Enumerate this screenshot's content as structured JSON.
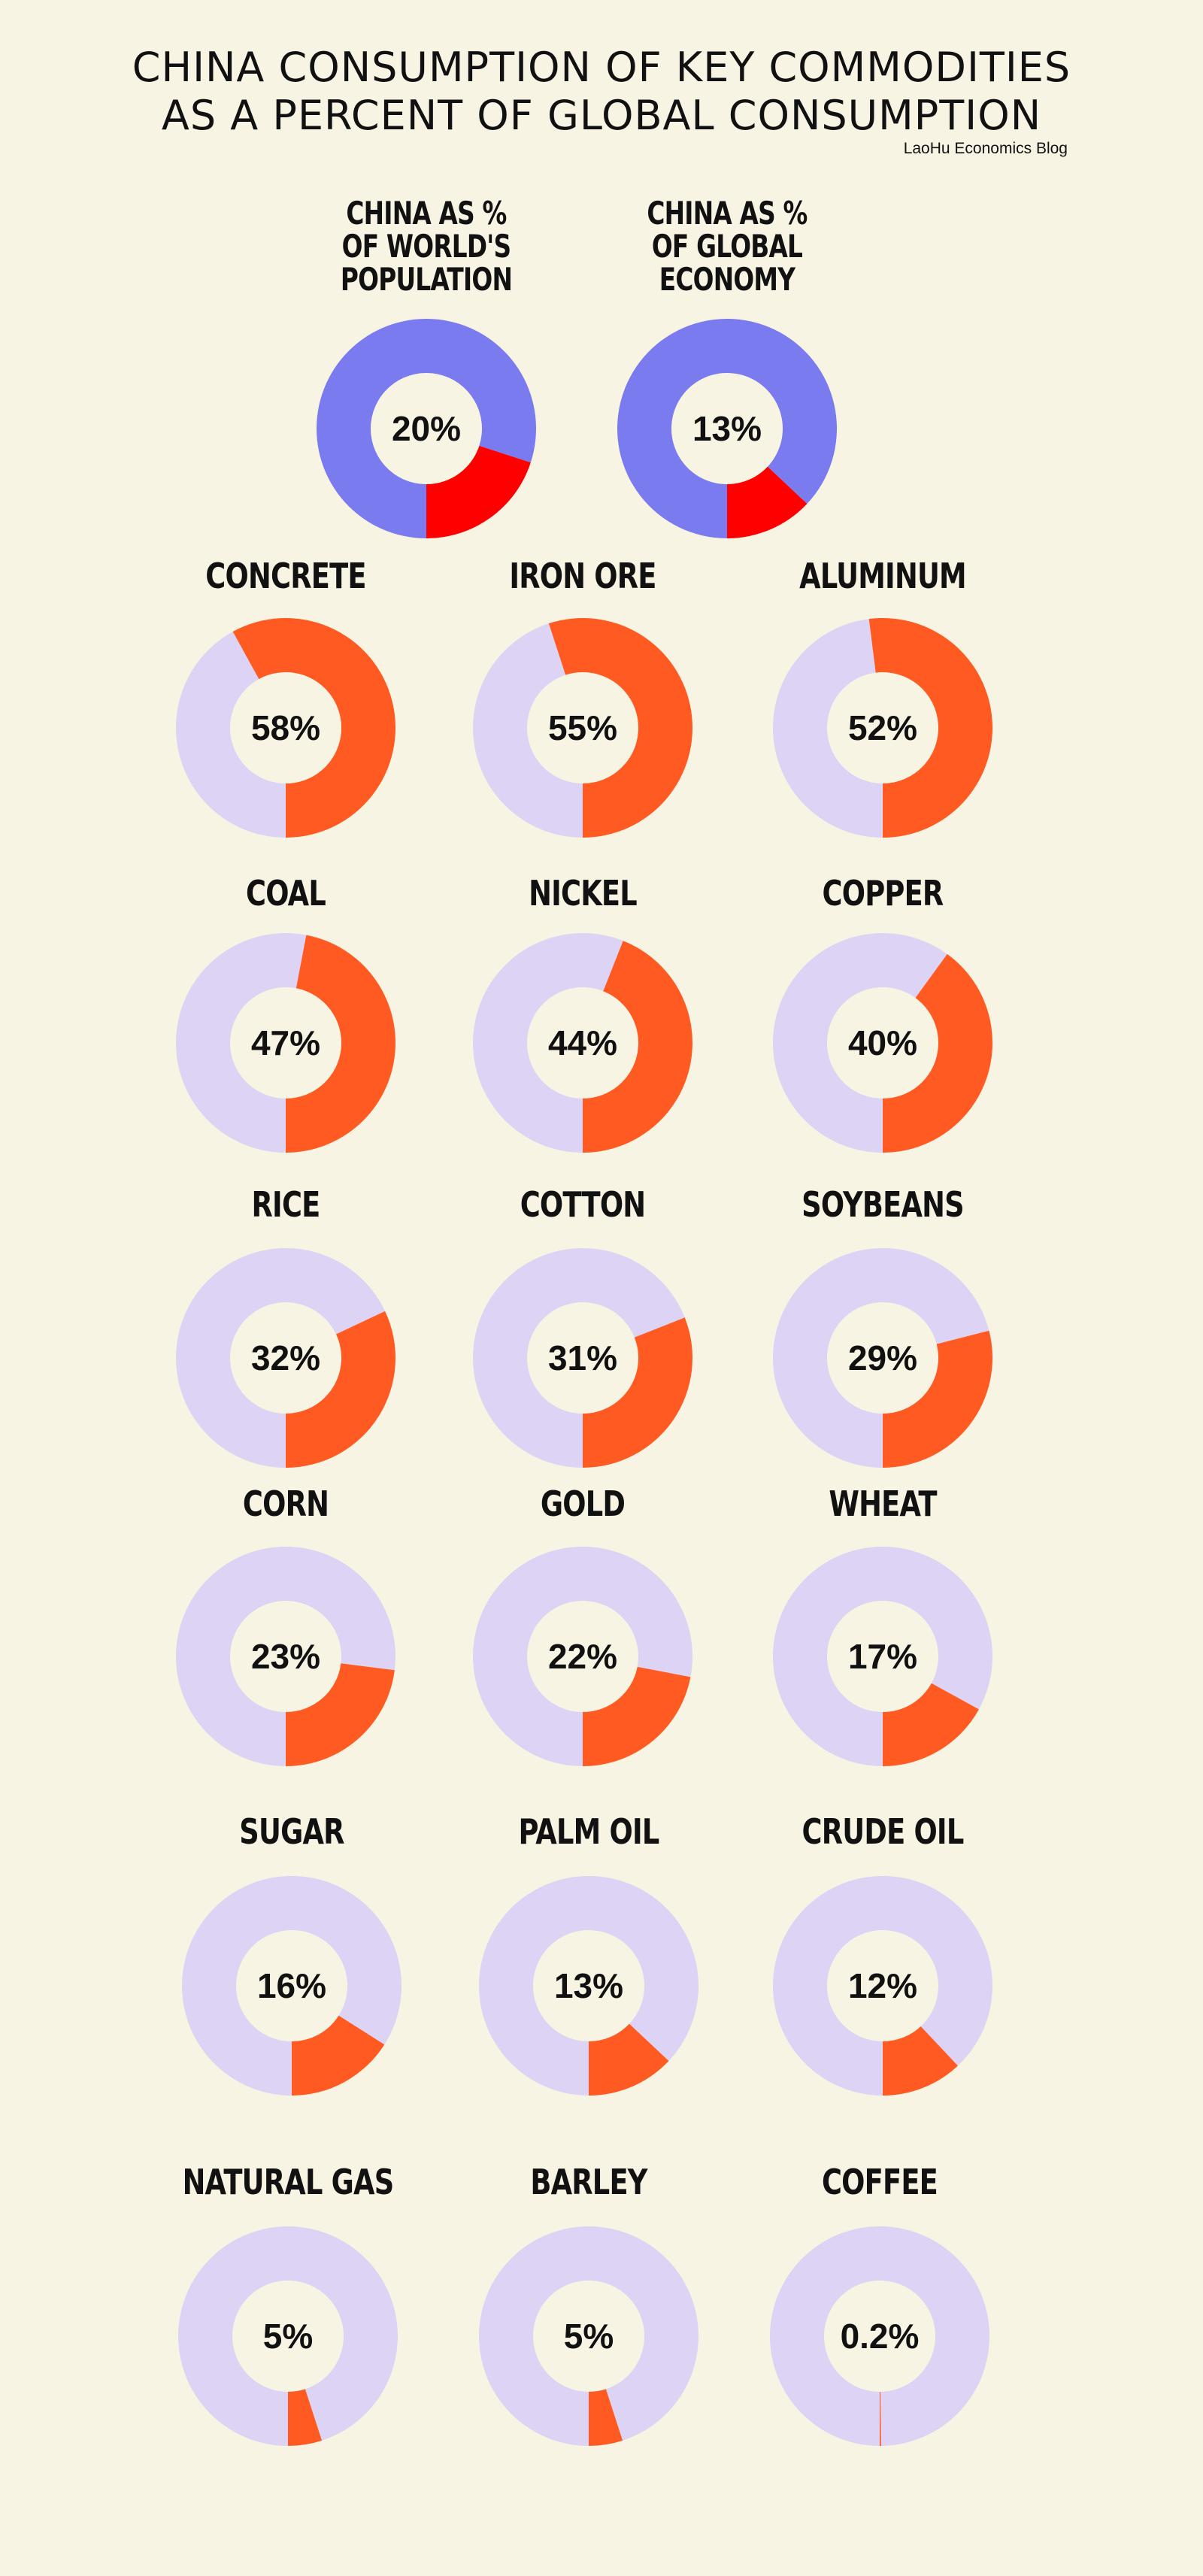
{
  "title_line1": "CHINA CONSUMPTION OF KEY COMMODITIES",
  "title_line2": "AS A PERCENT OF GLOBAL CONSUMPTION",
  "source": "LaoHu Economics Blog",
  "colors": {
    "background": "#f8f4e3",
    "context_share": "#ff0000",
    "context_rest": "#7a7bee",
    "commodity_share": "#ff5a22",
    "commodity_rest": "#dcd3f5",
    "hole": "#f8f4e3"
  },
  "chart_data": {
    "type": "pie",
    "context": [
      {
        "label": "CHINA AS %\nOF WORLD'S\nPOPULATION",
        "value": 20,
        "display": "20%"
      },
      {
        "label": "CHINA AS %\nOF GLOBAL\nECONOMY",
        "value": 13,
        "display": "13%"
      }
    ],
    "commodities": [
      {
        "label": "CONCRETE",
        "value": 58,
        "display": "58%"
      },
      {
        "label": "IRON ORE",
        "value": 55,
        "display": "55%"
      },
      {
        "label": "ALUMINUM",
        "value": 52,
        "display": "52%"
      },
      {
        "label": "COAL",
        "value": 47,
        "display": "47%"
      },
      {
        "label": "NICKEL",
        "value": 44,
        "display": "44%"
      },
      {
        "label": "COPPER",
        "value": 40,
        "display": "40%"
      },
      {
        "label": "RICE",
        "value": 32,
        "display": "32%"
      },
      {
        "label": "COTTON",
        "value": 31,
        "display": "31%"
      },
      {
        "label": "SOYBEANS",
        "value": 29,
        "display": "29%"
      },
      {
        "label": "CORN",
        "value": 23,
        "display": "23%"
      },
      {
        "label": "GOLD",
        "value": 22,
        "display": "22%"
      },
      {
        "label": "WHEAT",
        "value": 17,
        "display": "17%"
      },
      {
        "label": "SUGAR",
        "value": 16,
        "display": "16%"
      },
      {
        "label": "PALM OIL",
        "value": 13,
        "display": "13%"
      },
      {
        "label": "CRUDE OIL",
        "value": 12,
        "display": "12%"
      },
      {
        "label": "NATURAL GAS",
        "value": 5,
        "display": "5%"
      },
      {
        "label": "BARLEY",
        "value": 5,
        "display": "5%"
      },
      {
        "label": "COFFEE",
        "value": 0.2,
        "display": "0.2%"
      }
    ]
  }
}
